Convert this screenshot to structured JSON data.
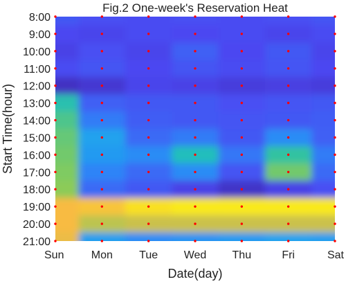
{
  "chart_data": {
    "type": "heatmap",
    "title": "Fig.2 One-week's Reservation Heat",
    "xlabel": "Date(day)",
    "ylabel": "Start Time(hour)",
    "x": [
      "Sun",
      "Mon",
      "Tue",
      "Wed",
      "Thu",
      "Fri",
      "Sat"
    ],
    "y": [
      "8:00",
      "9:00",
      "10:00",
      "11:00",
      "12:00",
      "13:00",
      "14:00",
      "15:00",
      "16:00",
      "17:00",
      "18:00",
      "19:00",
      "20:00",
      "21:00"
    ],
    "y_direction": "top-to-bottom",
    "values": [
      [
        0.18,
        0.16,
        0.15,
        0.16,
        0.15,
        0.16,
        0.17
      ],
      [
        0.14,
        0.13,
        0.15,
        0.14,
        0.15,
        0.13,
        0.15
      ],
      [
        0.12,
        0.16,
        0.13,
        0.2,
        0.14,
        0.18,
        0.13
      ],
      [
        0.15,
        0.17,
        0.14,
        0.17,
        0.15,
        0.17,
        0.14
      ],
      [
        0.05,
        0.08,
        0.13,
        0.12,
        0.1,
        0.11,
        0.1
      ],
      [
        0.55,
        0.2,
        0.18,
        0.18,
        0.16,
        0.17,
        0.18
      ],
      [
        0.62,
        0.26,
        0.19,
        0.18,
        0.17,
        0.18,
        0.19
      ],
      [
        0.66,
        0.36,
        0.22,
        0.26,
        0.18,
        0.3,
        0.2
      ],
      [
        0.68,
        0.34,
        0.3,
        0.52,
        0.25,
        0.58,
        0.26
      ],
      [
        0.7,
        0.28,
        0.22,
        0.3,
        0.17,
        0.68,
        0.22
      ],
      [
        0.72,
        0.22,
        0.18,
        0.12,
        0.06,
        0.12,
        0.16
      ],
      [
        0.86,
        0.88,
        0.94,
        0.96,
        0.96,
        0.96,
        0.96
      ],
      [
        0.86,
        0.78,
        0.8,
        0.8,
        0.8,
        0.8,
        0.8
      ],
      [
        0.84,
        0.35,
        0.3,
        0.32,
        0.34,
        0.36,
        0.35
      ]
    ],
    "colormap": [
      "#3e26a8",
      "#4b48f2",
      "#2e87f7",
      "#13bae6",
      "#2ec1a5",
      "#88cc5a",
      "#f8ba43",
      "#f9fb0e"
    ],
    "marker_color": "#ff0000",
    "ylim": [
      "8:00",
      "21:00"
    ],
    "grid": false
  }
}
